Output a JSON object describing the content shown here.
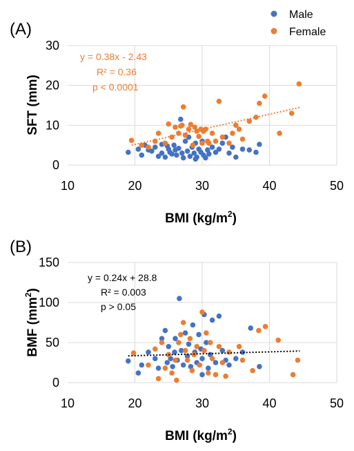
{
  "colors": {
    "male": "#4472C4",
    "female": "#ED7D31",
    "trend_b": "#000000"
  },
  "legend": {
    "items": [
      "Male",
      "Female"
    ]
  },
  "chart_data": [
    {
      "type": "scatter",
      "panel_label": "(A)",
      "xlabel": "BMI (kg/m",
      "xlabel_sup": "2",
      "xlabel_end": ")",
      "ylabel": "SFT (mm)",
      "xlim": [
        10,
        50
      ],
      "ylim": [
        0,
        30
      ],
      "xticks": [
        "10",
        "20",
        "30",
        "40",
        "50"
      ],
      "yticks": [
        "0",
        "10",
        "20",
        "30"
      ],
      "grid": true,
      "annotation": [
        "y = 0.38x - 2.43",
        "R² = 0.36",
        "p < 0.0001"
      ],
      "trendline": {
        "x": [
          19.5,
          44.5
        ],
        "y": [
          4.98,
          14.48
        ],
        "series": "Female"
      },
      "series": [
        {
          "name": "Male",
          "points": [
            [
              19,
              3.2
            ],
            [
              20.5,
              4
            ],
            [
              21,
              2.5
            ],
            [
              21.5,
              5
            ],
            [
              22,
              3.8
            ],
            [
              22.5,
              3.5
            ],
            [
              23,
              4.5
            ],
            [
              23.5,
              2.2
            ],
            [
              24,
              5.2
            ],
            [
              24,
              3
            ],
            [
              24.5,
              2
            ],
            [
              24.8,
              4.8
            ],
            [
              25,
              4
            ],
            [
              25.2,
              3.2
            ],
            [
              25.5,
              2.8
            ],
            [
              25.8,
              5
            ],
            [
              26,
              3.8
            ],
            [
              26.2,
              2.5
            ],
            [
              26.5,
              4.2
            ],
            [
              26.8,
              11.5
            ],
            [
              27,
              3
            ],
            [
              27.2,
              1.8
            ],
            [
              27.5,
              6
            ],
            [
              27.8,
              3.5
            ],
            [
              28,
              7
            ],
            [
              28.2,
              2.2
            ],
            [
              28.5,
              4.5
            ],
            [
              28.8,
              3
            ],
            [
              29,
              5.5
            ],
            [
              29.2,
              2
            ],
            [
              29.5,
              4
            ],
            [
              29.8,
              3.2
            ],
            [
              30,
              6
            ],
            [
              30.2,
              2.5
            ],
            [
              30.5,
              1.8
            ],
            [
              30.8,
              3.8
            ],
            [
              31,
              2.8
            ],
            [
              31.5,
              4.5
            ],
            [
              32,
              3.2
            ],
            [
              32.5,
              4
            ],
            [
              33,
              5.5
            ],
            [
              33.5,
              7
            ],
            [
              34,
              3
            ],
            [
              34.5,
              4.5
            ],
            [
              35,
              2
            ],
            [
              36,
              4
            ],
            [
              37,
              3.8
            ],
            [
              38,
              3.2
            ],
            [
              38.5,
              5.2
            ],
            [
              29,
              1.5
            ]
          ]
        },
        {
          "name": "Female",
          "points": [
            [
              19.5,
              6.2
            ],
            [
              21,
              5
            ],
            [
              22,
              4.5
            ],
            [
              23,
              6
            ],
            [
              23.5,
              8
            ],
            [
              24.5,
              5.5
            ],
            [
              25,
              10.3
            ],
            [
              25.5,
              7
            ],
            [
              26,
              9.5
            ],
            [
              26.5,
              8
            ],
            [
              26.8,
              9.8
            ],
            [
              27,
              10
            ],
            [
              27.2,
              14.6
            ],
            [
              27.5,
              7.5
            ],
            [
              28,
              9
            ],
            [
              28.3,
              10.2
            ],
            [
              28.6,
              5
            ],
            [
              28.9,
              9.5
            ],
            [
              29.2,
              8.5
            ],
            [
              29.5,
              7.2
            ],
            [
              29.8,
              9
            ],
            [
              30,
              5.5
            ],
            [
              30.2,
              8.5
            ],
            [
              30.5,
              9
            ],
            [
              30.8,
              6
            ],
            [
              31,
              5.5
            ],
            [
              31.5,
              8
            ],
            [
              32,
              6
            ],
            [
              32.5,
              16
            ],
            [
              33,
              7
            ],
            [
              34,
              5.5
            ],
            [
              34.5,
              8
            ],
            [
              35,
              10
            ],
            [
              35.5,
              9
            ],
            [
              36,
              6.5
            ],
            [
              37,
              11
            ],
            [
              38,
              12
            ],
            [
              38.5,
              15.5
            ],
            [
              39.3,
              17.3
            ],
            [
              41.5,
              8
            ],
            [
              43.3,
              13
            ],
            [
              44.4,
              20.4
            ]
          ]
        }
      ]
    },
    {
      "type": "scatter",
      "panel_label": "(B)",
      "xlabel": "BMI (kg/m",
      "xlabel_sup": "2",
      "xlabel_end": ")",
      "ylabel": "BMF (mm",
      "ylabel_sup": "2",
      "ylabel_end": ")",
      "xlim": [
        10,
        50
      ],
      "ylim": [
        0,
        150
      ],
      "xticks": [
        "10",
        "20",
        "30",
        "40",
        "50"
      ],
      "yticks": [
        "0",
        "50",
        "100",
        "150"
      ],
      "grid": true,
      "annotation": [
        "y = 0.24x + 28.8",
        "R² = 0.003",
        "p > 0.05"
      ],
      "trendline": {
        "x": [
          19,
          44.5
        ],
        "y": [
          33.36,
          39.48
        ],
        "series": "all"
      },
      "series": [
        {
          "name": "Male",
          "points": [
            [
              19,
              27
            ],
            [
              20.5,
              12
            ],
            [
              21,
              22
            ],
            [
              22,
              38
            ],
            [
              23,
              30
            ],
            [
              23.5,
              18
            ],
            [
              24,
              55
            ],
            [
              24.5,
              65
            ],
            [
              24.8,
              25
            ],
            [
              25,
              45
            ],
            [
              25.3,
              30
            ],
            [
              25.6,
              20
            ],
            [
              25.9,
              38
            ],
            [
              26,
              55
            ],
            [
              26.3,
              28
            ],
            [
              26.6,
              105
            ],
            [
              26.9,
              40
            ],
            [
              27.2,
              22
            ],
            [
              27.5,
              62
            ],
            [
              27.8,
              33
            ],
            [
              28,
              48
            ],
            [
              28.3,
              20
            ],
            [
              28.6,
              72
            ],
            [
              28.9,
              38
            ],
            [
              29.2,
              25
            ],
            [
              29.5,
              60
            ],
            [
              29.8,
              42
            ],
            [
              30,
              30
            ],
            [
              30.3,
              85
            ],
            [
              30.6,
              50
            ],
            [
              30.9,
              18
            ],
            [
              31.2,
              35
            ],
            [
              31.5,
              78
            ],
            [
              32,
              25
            ],
            [
              32.5,
              83
            ],
            [
              33,
              40
            ],
            [
              33.5,
              28
            ],
            [
              34,
              22
            ],
            [
              35,
              30
            ],
            [
              36,
              38
            ],
            [
              37.2,
              68
            ],
            [
              38.5,
              20
            ],
            [
              30,
              10
            ]
          ]
        },
        {
          "name": "Female",
          "points": [
            [
              19.8,
              37
            ],
            [
              22,
              22
            ],
            [
              23,
              42
            ],
            [
              23.5,
              5
            ],
            [
              24,
              50
            ],
            [
              24.5,
              18
            ],
            [
              25,
              35
            ],
            [
              25.5,
              12
            ],
            [
              26,
              28
            ],
            [
              26.2,
              3
            ],
            [
              26.5,
              50
            ],
            [
              26.8,
              60
            ],
            [
              27.2,
              75
            ],
            [
              27.5,
              40
            ],
            [
              27.8,
              28
            ],
            [
              28.2,
              55
            ],
            [
              28.5,
              15
            ],
            [
              28.8,
              35
            ],
            [
              29.2,
              45
            ],
            [
              29.6,
              22
            ],
            [
              30,
              88
            ],
            [
              30.3,
              40
            ],
            [
              30.6,
              62
            ],
            [
              30.9,
              12
            ],
            [
              31.2,
              50
            ],
            [
              31.5,
              30
            ],
            [
              32,
              10
            ],
            [
              32.5,
              45
            ],
            [
              33,
              25
            ],
            [
              33.5,
              8
            ],
            [
              34,
              38
            ],
            [
              35.5,
              45
            ],
            [
              36,
              28
            ],
            [
              37.5,
              15
            ],
            [
              38.4,
              65
            ],
            [
              39.4,
              70
            ],
            [
              41.3,
              53
            ],
            [
              43.5,
              10
            ],
            [
              44.2,
              28
            ]
          ]
        }
      ]
    }
  ]
}
